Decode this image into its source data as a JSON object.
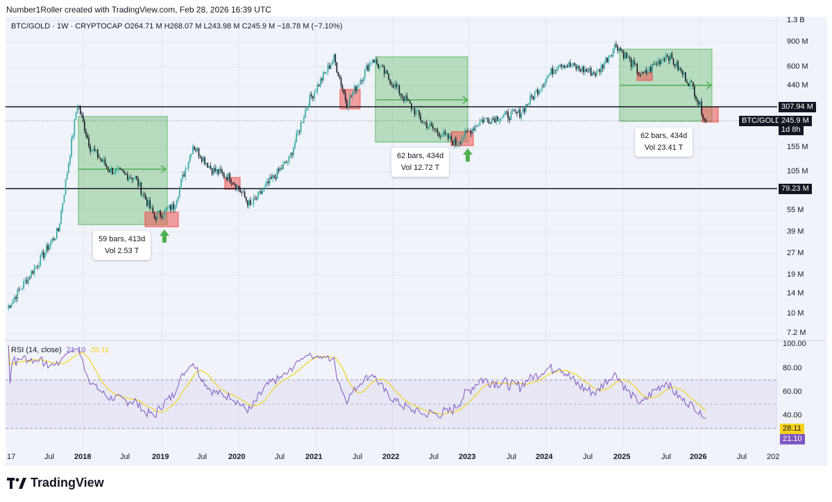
{
  "header": {
    "text": "Number1Roller created with TradingView.com, Feb 28, 2026 16:39 UTC"
  },
  "legend": {
    "text": "BTC/GOLD · 1W · CRYPTOCAP  O264.71 M  H268.07 M  L243.98 M  C245.9 M  −18.78 M (−7.10%)"
  },
  "rsi_legend": {
    "label": "RSI (14, close)",
    "rsi_value": "21.10",
    "ma_value": "28.11"
  },
  "annotations": [
    {
      "line1": "59 bars, 413d",
      "line2": "Vol 2.53 T"
    },
    {
      "line1": "62 bars, 434d",
      "line2": "Vol 12.72 T"
    },
    {
      "line1": "62 bars, 434d",
      "line2": "Vol 23.41 T"
    }
  ],
  "price_tags": {
    "level_high": "307.94 M",
    "last_price": "245.9 M",
    "countdown": "1d 8h",
    "symbol": "BTC/GOLD",
    "level_low": "79.23 M",
    "rsi_ma": "28.11",
    "rsi": "21.10"
  },
  "brand": {
    "name": "TradingView"
  },
  "colors": {
    "up": "#26a69a",
    "down": "#131722",
    "rsi": "#7e57c2",
    "rsi_ma": "#f7d21c",
    "box_fill": "#4caf50",
    "red_box": "#ef5350",
    "arrow": "#4caf50"
  },
  "chart_data": [
    {
      "type": "line",
      "title": "BTC/GOLD · 1W · CRYPTOCAP",
      "scale": "log",
      "y_ticks": [
        "1.3 B",
        "900 M",
        "600 M",
        "440 M",
        "155 M",
        "105 M",
        "55 M",
        "39 M",
        "27 M",
        "19 M",
        "14 M",
        "10 M",
        "7.2 M"
      ],
      "x_ticks": [
        "17",
        "Jul",
        "2018",
        "Jul",
        "2019",
        "Jul",
        "2020",
        "Jul",
        "2021",
        "Jul",
        "2022",
        "Jul",
        "2023",
        "Jul",
        "2024",
        "Jul",
        "2025",
        "Jul",
        "2026",
        "Jul",
        "202"
      ],
      "horizontal_levels": [
        {
          "label": "307.94 M",
          "value": 307.94
        },
        {
          "label": "79.23 M",
          "value": 79.23
        }
      ],
      "series": [
        {
          "values_approx": [
            [
              "2017-01",
              11
            ],
            [
              "2017-06",
              24
            ],
            [
              "2017-09",
              40
            ],
            [
              "2017-12",
              330
            ],
            [
              "2018-02",
              160
            ],
            [
              "2018-05",
              110
            ],
            [
              "2018-09",
              96
            ],
            [
              "2018-12",
              50
            ],
            [
              "2019-03",
              60
            ],
            [
              "2019-06",
              165
            ],
            [
              "2019-09",
              110
            ],
            [
              "2019-12",
              95
            ],
            [
              "2020-03",
              60
            ],
            [
              "2020-06",
              90
            ],
            [
              "2020-09",
              130
            ],
            [
              "2020-12",
              340
            ],
            [
              "2021-04",
              700
            ],
            [
              "2021-06",
              330
            ],
            [
              "2021-10",
              700
            ],
            [
              "2022-01",
              470
            ],
            [
              "2022-06",
              240
            ],
            [
              "2022-11",
              170
            ],
            [
              "2023-03",
              250
            ],
            [
              "2023-09",
              280
            ],
            [
              "2024-03",
              650
            ],
            [
              "2024-09",
              540
            ],
            [
              "2024-12",
              880
            ],
            [
              "2025-04",
              520
            ],
            [
              "2025-08",
              750
            ],
            [
              "2025-12",
              430
            ],
            [
              "2026-02",
              245.9
            ]
          ]
        }
      ]
    },
    {
      "type": "line",
      "title": "RSI (14, close)",
      "y_ticks": [
        "100.00",
        "80.00",
        "60.00",
        "40.00"
      ],
      "band": [
        30,
        70
      ],
      "series": [
        {
          "name": "RSI (14, close)",
          "last": 21.1
        },
        {
          "name": "RSI-based MA",
          "last": 28.11
        }
      ]
    }
  ]
}
